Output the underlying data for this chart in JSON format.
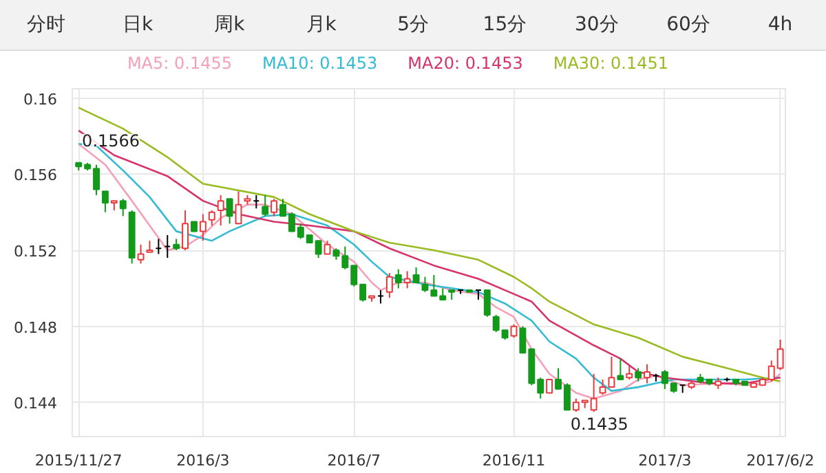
{
  "chart_data": {
    "type": "candlestick",
    "annotations": [
      "分时",
      "日k",
      "周k",
      "月k",
      "5分",
      "15分",
      "30分",
      "60分",
      "4h",
      {
        "text": "0.1566",
        "x": "2015-12-04",
        "y": 0.1566
      },
      {
        "text": "0.1435",
        "x": "2016-12-23",
        "y": 0.1435
      }
    ],
    "x": [
      "2015-11-27",
      "2015-12-04",
      "2015-12-11",
      "2015-12-18",
      "2015-12-25",
      "2016-01-01",
      "2016-01-08",
      "2016-01-15",
      "2016-01-22",
      "2016-01-29",
      "2016-02-05",
      "2016-02-12",
      "2016-02-19",
      "2016-02-26",
      "2016-03-04",
      "2016-03-11",
      "2016-03-18",
      "2016-03-25",
      "2016-04-01",
      "2016-04-08",
      "2016-04-15",
      "2016-04-22",
      "2016-04-29",
      "2016-05-06",
      "2016-05-13",
      "2016-05-20",
      "2016-05-27",
      "2016-06-03",
      "2016-06-10",
      "2016-06-17",
      "2016-06-24",
      "2016-07-01",
      "2016-07-08",
      "2016-07-15",
      "2016-07-22",
      "2016-07-29",
      "2016-08-05",
      "2016-08-12",
      "2016-08-19",
      "2016-08-26",
      "2016-09-02",
      "2016-09-09",
      "2016-09-16",
      "2016-09-23",
      "2016-09-30",
      "2016-10-07",
      "2016-10-14",
      "2016-10-21",
      "2016-10-28",
      "2016-11-04",
      "2016-11-11",
      "2016-11-18",
      "2016-11-25",
      "2016-12-02",
      "2016-12-09",
      "2016-12-16",
      "2016-12-23",
      "2016-12-30",
      "2017-01-06",
      "2017-01-13",
      "2017-01-20",
      "2017-01-27",
      "2017-02-03",
      "2017-02-10",
      "2017-02-17",
      "2017-02-24",
      "2017-03-03",
      "2017-03-10",
      "2017-03-17",
      "2017-03-24",
      "2017-03-31",
      "2017-04-07",
      "2017-04-14",
      "2017-04-21",
      "2017-04-28",
      "2017-05-05",
      "2017-05-12",
      "2017-05-19",
      "2017-05-26",
      "2017-06-02"
    ],
    "ohlc": [
      [
        0.1566,
        0.1566,
        0.1562,
        0.1564
      ],
      [
        0.1565,
        0.1566,
        0.1562,
        0.1563
      ],
      [
        0.1563,
        0.1565,
        0.1549,
        0.1552
      ],
      [
        0.1551,
        0.1551,
        0.154,
        0.1545
      ],
      [
        0.1545,
        0.1546,
        0.1541,
        0.1546
      ],
      [
        0.1546,
        0.1547,
        0.1538,
        0.1542
      ],
      [
        0.154,
        0.1541,
        0.1513,
        0.1516
      ],
      [
        0.1515,
        0.1523,
        0.1513,
        0.1518
      ],
      [
        0.1519,
        0.1525,
        0.1519,
        0.152
      ],
      [
        0.1521,
        0.1526,
        0.1518,
        0.1521
      ],
      [
        0.1522,
        0.1528,
        0.1516,
        0.1522
      ],
      [
        0.1523,
        0.1526,
        0.152,
        0.1521
      ],
      [
        0.1521,
        0.1541,
        0.152,
        0.1534
      ],
      [
        0.1535,
        0.1535,
        0.153,
        0.153
      ],
      [
        0.153,
        0.1539,
        0.1525,
        0.1535
      ],
      [
        0.1536,
        0.1541,
        0.1533,
        0.154
      ],
      [
        0.1541,
        0.1549,
        0.1533,
        0.1546
      ],
      [
        0.1547,
        0.1547,
        0.1534,
        0.1538
      ],
      [
        0.1534,
        0.1551,
        0.1534,
        0.1544
      ],
      [
        0.1546,
        0.1549,
        0.1544,
        0.1547
      ],
      [
        0.1546,
        0.1549,
        0.1542,
        0.1546
      ],
      [
        0.1543,
        0.1549,
        0.1538,
        0.1539
      ],
      [
        0.154,
        0.1547,
        0.1538,
        0.1546
      ],
      [
        0.1544,
        0.1547,
        0.1538,
        0.1538
      ],
      [
        0.1539,
        0.154,
        0.153,
        0.153
      ],
      [
        0.1532,
        0.1534,
        0.1526,
        0.1527
      ],
      [
        0.1528,
        0.1528,
        0.1524,
        0.1524
      ],
      [
        0.1525,
        0.1525,
        0.1516,
        0.1518
      ],
      [
        0.1518,
        0.1525,
        0.1518,
        0.1523
      ],
      [
        0.152,
        0.1521,
        0.1515,
        0.1517
      ],
      [
        0.1517,
        0.1522,
        0.151,
        0.1511
      ],
      [
        0.1512,
        0.1512,
        0.1501,
        0.1502
      ],
      [
        0.1502,
        0.1502,
        0.1493,
        0.1494
      ],
      [
        0.1495,
        0.1496,
        0.1493,
        0.1496
      ],
      [
        0.1496,
        0.1499,
        0.1492,
        0.1496
      ],
      [
        0.1498,
        0.1508,
        0.1495,
        0.1506
      ],
      [
        0.1507,
        0.151,
        0.15,
        0.1503
      ],
      [
        0.1503,
        0.1509,
        0.15,
        0.1505
      ],
      [
        0.1507,
        0.1511,
        0.1503,
        0.1503
      ],
      [
        0.1502,
        0.1506,
        0.1498,
        0.1499
      ],
      [
        0.1499,
        0.1507,
        0.1496,
        0.1496
      ],
      [
        0.1496,
        0.15,
        0.1494,
        0.1494
      ],
      [
        0.1499,
        0.1499,
        0.1494,
        0.1498
      ],
      [
        0.1499,
        0.1499,
        0.1497,
        0.1499
      ],
      [
        0.1499,
        0.1499,
        0.1498,
        0.1498
      ],
      [
        0.1499,
        0.1499,
        0.1494,
        0.1499
      ],
      [
        0.1499,
        0.1499,
        0.1485,
        0.1486
      ],
      [
        0.1485,
        0.1486,
        0.1477,
        0.1478
      ],
      [
        0.1478,
        0.1478,
        0.1473,
        0.1474
      ],
      [
        0.1475,
        0.1481,
        0.1474,
        0.148
      ],
      [
        0.1479,
        0.148,
        0.1466,
        0.1466
      ],
      [
        0.1468,
        0.1468,
        0.1449,
        0.145
      ],
      [
        0.1452,
        0.1453,
        0.1442,
        0.1445
      ],
      [
        0.1445,
        0.1452,
        0.1445,
        0.1452
      ],
      [
        0.1452,
        0.1458,
        0.1447,
        0.1447
      ],
      [
        0.1449,
        0.145,
        0.1436,
        0.1436
      ],
      [
        0.1436,
        0.1442,
        0.1435,
        0.144
      ],
      [
        0.144,
        0.1441,
        0.1437,
        0.1441
      ],
      [
        0.1436,
        0.1455,
        0.1435,
        0.1442
      ],
      [
        0.1445,
        0.1452,
        0.1444,
        0.1448
      ],
      [
        0.1448,
        0.1464,
        0.1448,
        0.1453
      ],
      [
        0.1454,
        0.1463,
        0.1452,
        0.1452
      ],
      [
        0.1453,
        0.1459,
        0.1452,
        0.1455
      ],
      [
        0.1456,
        0.1458,
        0.1451,
        0.1453
      ],
      [
        0.1453,
        0.146,
        0.145,
        0.1456
      ],
      [
        0.1454,
        0.1455,
        0.1451,
        0.1454
      ],
      [
        0.1456,
        0.1457,
        0.1447,
        0.145
      ],
      [
        0.145,
        0.145,
        0.1445,
        0.1446
      ],
      [
        0.1449,
        0.1449,
        0.1445,
        0.1449
      ],
      [
        0.1448,
        0.1451,
        0.1447,
        0.145
      ],
      [
        0.1453,
        0.1455,
        0.145,
        0.1451
      ],
      [
        0.1452,
        0.1452,
        0.1449,
        0.145
      ],
      [
        0.1449,
        0.1453,
        0.1447,
        0.1451
      ],
      [
        0.1452,
        0.1453,
        0.1451,
        0.1452
      ],
      [
        0.1452,
        0.1452,
        0.1449,
        0.145
      ],
      [
        0.1451,
        0.1451,
        0.1449,
        0.1449
      ],
      [
        0.1448,
        0.145,
        0.1448,
        0.145
      ],
      [
        0.1449,
        0.1453,
        0.1449,
        0.1452
      ],
      [
        0.1452,
        0.1462,
        0.1451,
        0.1459
      ],
      [
        0.1458,
        0.1473,
        0.1457,
        0.1468
      ]
    ],
    "colors": [
      "#139a1a",
      "#139a1a",
      "#139a1a",
      "#139a1a",
      "#e8393c",
      "#139a1a",
      "#139a1a",
      "#e8393c",
      "#e8393c",
      "#000000",
      "#000000",
      "#139a1a",
      "#e8393c",
      "#139a1a",
      "#e8393c",
      "#e8393c",
      "#e8393c",
      "#139a1a",
      "#e8393c",
      "#e8393c",
      "#000000",
      "#139a1a",
      "#e8393c",
      "#139a1a",
      "#139a1a",
      "#139a1a",
      "#139a1a",
      "#139a1a",
      "#e8393c",
      "#139a1a",
      "#139a1a",
      "#139a1a",
      "#139a1a",
      "#e8393c",
      "#000000",
      "#e8393c",
      "#139a1a",
      "#e8393c",
      "#139a1a",
      "#139a1a",
      "#139a1a",
      "#139a1a",
      "#139a1a",
      "#000000",
      "#139a1a",
      "#000000",
      "#139a1a",
      "#139a1a",
      "#139a1a",
      "#e8393c",
      "#139a1a",
      "#139a1a",
      "#139a1a",
      "#e8393c",
      "#139a1a",
      "#139a1a",
      "#e8393c",
      "#e8393c",
      "#e8393c",
      "#e8393c",
      "#e8393c",
      "#139a1a",
      "#e8393c",
      "#139a1a",
      "#e8393c",
      "#000000",
      "#139a1a",
      "#139a1a",
      "#000000",
      "#e8393c",
      "#139a1a",
      "#139a1a",
      "#e8393c",
      "#000000",
      "#139a1a",
      "#139a1a",
      "#e8393c",
      "#e8393c",
      "#e8393c",
      "#e8393c"
    ],
    "series": [
      {
        "type": "line",
        "name": "MA5: 0.1455",
        "color": "#f4a0b8",
        "x": [
          "2015-11-27",
          "2015-12-18",
          "2016-01-08",
          "2016-02-05",
          "2016-02-19",
          "2016-03-04",
          "2016-03-18",
          "2016-04-08",
          "2016-04-22",
          "2016-05-13",
          "2016-06-10",
          "2016-07-01",
          "2016-07-15",
          "2016-07-22",
          "2016-08-05",
          "2016-08-26",
          "2016-09-16",
          "2016-10-07",
          "2016-10-21",
          "2016-11-04",
          "2016-11-18",
          "2016-12-02",
          "2016-12-23",
          "2017-01-06",
          "2017-01-27",
          "2017-02-10",
          "2017-02-24",
          "2017-03-17",
          "2017-04-14",
          "2017-05-12",
          "2017-05-26",
          "2017-06-02"
        ],
        "values": [
          0.1576,
          0.1565,
          0.1546,
          0.152,
          0.1522,
          0.1528,
          0.1537,
          0.1544,
          0.1544,
          0.1539,
          0.1523,
          0.1514,
          0.1503,
          0.1499,
          0.1503,
          0.1503,
          0.1499,
          0.1497,
          0.149,
          0.1485,
          0.1468,
          0.1455,
          0.1445,
          0.1442,
          0.1446,
          0.1452,
          0.1454,
          0.1449,
          0.145,
          0.1449,
          0.1451,
          0.1455
        ]
      },
      {
        "type": "line",
        "name": "MA10: 0.1453",
        "color": "#33bbd3",
        "x": [
          "2015-11-27",
          "2015-12-11",
          "2016-01-01",
          "2016-01-22",
          "2016-02-12",
          "2016-03-11",
          "2016-03-25",
          "2016-04-22",
          "2016-05-13",
          "2016-06-10",
          "2016-07-01",
          "2016-07-15",
          "2016-07-29",
          "2016-08-26",
          "2016-09-16",
          "2016-10-07",
          "2016-10-28",
          "2016-11-18",
          "2016-12-02",
          "2016-12-23",
          "2017-01-06",
          "2017-01-20",
          "2017-02-10",
          "2017-02-24",
          "2017-03-10",
          "2017-04-07",
          "2017-05-05",
          "2017-06-02"
        ],
        "values": [
          0.1576,
          0.1575,
          0.1562,
          0.1548,
          0.153,
          0.1525,
          0.153,
          0.1538,
          0.1539,
          0.1533,
          0.1523,
          0.1514,
          0.1506,
          0.1502,
          0.15,
          0.1498,
          0.1492,
          0.1483,
          0.1472,
          0.1463,
          0.1453,
          0.1446,
          0.1448,
          0.145,
          0.1452,
          0.1452,
          0.1452,
          0.1453
        ]
      },
      {
        "type": "line",
        "name": "MA20: 0.1453",
        "color": "#d6336c",
        "x": [
          "2015-11-27",
          "2015-12-25",
          "2016-02-05",
          "2016-03-04",
          "2016-04-01",
          "2016-04-29",
          "2016-05-27",
          "2016-07-01",
          "2016-07-29",
          "2016-09-02",
          "2016-10-07",
          "2016-11-04",
          "2016-11-18",
          "2016-12-02",
          "2017-01-06",
          "2017-01-27",
          "2017-02-10",
          "2017-03-03",
          "2017-04-07",
          "2017-05-05",
          "2017-06-02"
        ],
        "values": [
          0.1583,
          0.157,
          0.1559,
          0.1546,
          0.1539,
          0.1535,
          0.1533,
          0.153,
          0.1521,
          0.1512,
          0.1505,
          0.1497,
          0.1493,
          0.1483,
          0.147,
          0.1463,
          0.1456,
          0.1453,
          0.145,
          0.145,
          0.1453
        ]
      },
      {
        "type": "line",
        "name": "MA30: 0.1451",
        "color": "#99bb22",
        "x": [
          "2015-11-27",
          "2016-01-01",
          "2016-02-05",
          "2016-03-04",
          "2016-04-29",
          "2016-05-27",
          "2016-07-01",
          "2016-07-29",
          "2016-09-02",
          "2016-10-07",
          "2016-11-04",
          "2016-11-18",
          "2016-12-02",
          "2017-01-06",
          "2017-02-10",
          "2017-03-17",
          "2017-04-21",
          "2017-05-19",
          "2017-06-02"
        ],
        "values": [
          0.1595,
          0.1584,
          0.1569,
          0.1555,
          0.1548,
          0.1539,
          0.153,
          0.1524,
          0.152,
          0.1515,
          0.1506,
          0.15,
          0.1493,
          0.1481,
          0.1474,
          0.1464,
          0.1458,
          0.1453,
          0.1451
        ]
      }
    ],
    "xlim": [
      "2015-11-22",
      "2017-06-06"
    ],
    "xticks": [
      {
        "value": "2015-11-27",
        "label": "2015/11/27"
      },
      {
        "value": "2016-03-04",
        "label": "2016/3"
      },
      {
        "value": "2016-07-01",
        "label": "2016/7"
      },
      {
        "value": "2016-11-04",
        "label": "2016/11"
      },
      {
        "value": "2017-03-03",
        "label": "2017/3"
      },
      {
        "value": "2017-06-02",
        "label": "2017/6/2"
      }
    ],
    "ylim": [
      0.1422,
      0.1605
    ],
    "yticks": [
      0.144,
      0.148,
      0.152,
      0.156,
      0.16
    ],
    "grid": true,
    "legend": "top"
  }
}
